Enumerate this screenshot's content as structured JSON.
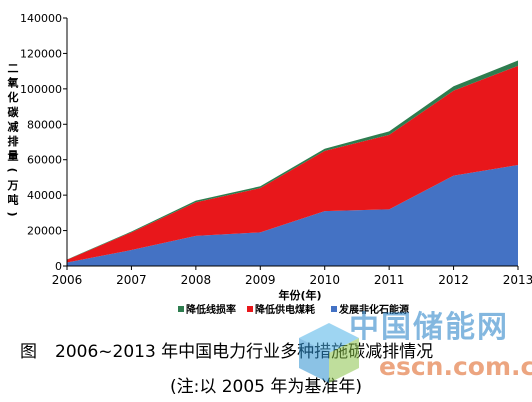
{
  "chart_data": {
    "type": "area",
    "stacked": true,
    "title": "",
    "ylabel": "二氧化碳减排量(万吨)",
    "xlabel": "年份(年)",
    "x": [
      2006,
      2007,
      2008,
      2009,
      2010,
      2011,
      2012,
      2013
    ],
    "ylim": [
      0,
      140000
    ],
    "yticks": [
      0,
      20000,
      40000,
      60000,
      80000,
      100000,
      120000,
      140000
    ],
    "grid": false,
    "legend_position": "bottom",
    "series": [
      {
        "name": "发展非化石能源",
        "color": "#4472c4",
        "values": [
          2000,
          9000,
          17000,
          19000,
          31000,
          32000,
          51000,
          57000
        ]
      },
      {
        "name": "降低供电煤耗",
        "color": "#e8171b",
        "values": [
          1500,
          10000,
          19000,
          25000,
          34000,
          42000,
          48000,
          56000
        ]
      },
      {
        "name": "降低线损率",
        "color": "#2e7d4f",
        "values": [
          200,
          500,
          900,
          1000,
          1200,
          2000,
          2500,
          3000
        ]
      }
    ],
    "legend_order": [
      "降低线损率",
      "降低供电煤耗",
      "发展非化石能源"
    ]
  },
  "caption": {
    "figure_label": "图",
    "text": "2006~2013 年中国电力行业多种措施碳减排情况",
    "note": "(注:以 2005 年为基准年)"
  },
  "watermark": {
    "title": "中国储能网",
    "url": "escn.com.cn"
  }
}
